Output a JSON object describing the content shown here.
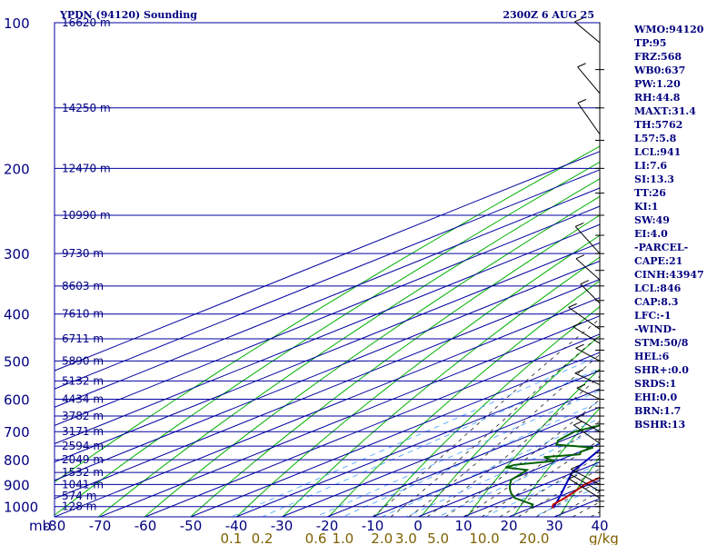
{
  "header": {
    "title": "YPDN (94120) Sounding",
    "datetime": "2300Z  6 AUG 25"
  },
  "indices": [
    "WMO:94120",
    "TP:95",
    "FRZ:568",
    "WB0:637",
    "PW:1.20",
    "RH:44.8",
    "MAXT:31.4",
    "TH:5762",
    "L57:5.8",
    "LCL:941",
    "LI:7.6",
    "SI:13.3",
    "TT:26",
    "KI:1",
    "SW:49",
    "EI:4.0",
    "-PARCEL-",
    "CAPE:21",
    "CINH:43947",
    "LCL:846",
    "CAP:8.3",
    "LFC:-1",
    "-WIND-",
    "STM:50/8",
    "HEL:6",
    "SHR+:0.0",
    "SRDS:1",
    "EHI:0.0",
    "BRN:1.7",
    "BSHR:13"
  ],
  "colors": {
    "frame": "#0000a0",
    "isotherm": "#0000a0",
    "dry_adiabat": "#00b000",
    "moist_adiabat": "#202020",
    "mixing_ratio": "#40a0ff",
    "temperature": "#c00000",
    "dewpoint": "#006000",
    "parcel": "#0000c0",
    "wind": "#000000"
  },
  "chart_data": {
    "type": "skew-t",
    "title": "YPDN (94120) Sounding",
    "pressure_unit_label": "mb",
    "mixing_ratio_unit_label": "g/kg",
    "pressure_ticks": [
      100,
      200,
      300,
      400,
      500,
      600,
      700,
      800,
      900,
      1000
    ],
    "temp_ticks": [
      -80,
      -70,
      -60,
      -50,
      -40,
      -30,
      -20,
      -10,
      0,
      10,
      20,
      30,
      40
    ],
    "temp_tick_labels": [
      "-80",
      "-70",
      "-60",
      "-50",
      "-40",
      "-30",
      "-20",
      "-10",
      "0",
      "10",
      "20",
      "30",
      "40"
    ],
    "mixing_ratio_ticks": [
      0.1,
      0.2,
      0.6,
      1.0,
      2.0,
      3.0,
      5.0,
      10.0,
      20.0
    ],
    "mixing_ratio_tick_labels": [
      "0.1",
      "0.2",
      "0.6",
      "1.0",
      "2.0",
      "3.0",
      "5.0",
      "10.0",
      "20.0"
    ],
    "height_levels": [
      {
        "p": 100,
        "label": "16620 m"
      },
      {
        "p": 150,
        "label": "14250 m"
      },
      {
        "p": 200,
        "label": "12470 m"
      },
      {
        "p": 250,
        "label": "10990 m"
      },
      {
        "p": 300,
        "label": "9730 m"
      },
      {
        "p": 350,
        "label": "8603 m"
      },
      {
        "p": 400,
        "label": "7610 m"
      },
      {
        "p": 450,
        "label": "6711 m"
      },
      {
        "p": 500,
        "label": "5890 m"
      },
      {
        "p": 550,
        "label": "5132 m"
      },
      {
        "p": 600,
        "label": "4434 m"
      },
      {
        "p": 650,
        "label": "3782 m"
      },
      {
        "p": 700,
        "label": "3171 m"
      },
      {
        "p": 750,
        "label": "2594 m"
      },
      {
        "p": 800,
        "label": "2049 m"
      },
      {
        "p": 850,
        "label": "1532 m"
      },
      {
        "p": 900,
        "label": "1041 m"
      },
      {
        "p": 950,
        "label": "574 m"
      },
      {
        "p": 1000,
        "label": "128 m"
      }
    ],
    "temperature_profile": [
      [
        1007,
        25.0
      ],
      [
        1000,
        24.0
      ],
      [
        990,
        23.0
      ],
      [
        960,
        22.0
      ],
      [
        930,
        20.6
      ],
      [
        900,
        19.0
      ],
      [
        870,
        18.5
      ],
      [
        850,
        17.6
      ],
      [
        820,
        16.4
      ],
      [
        800,
        15.6
      ],
      [
        780,
        14.6
      ],
      [
        760,
        12.8
      ],
      [
        740,
        11.2
      ],
      [
        720,
        10.6
      ],
      [
        700,
        9.4
      ],
      [
        680,
        8.0
      ],
      [
        660,
        7.0
      ],
      [
        640,
        6.0
      ],
      [
        620,
        4.5
      ],
      [
        600,
        2.0
      ],
      [
        570,
        0.2
      ],
      [
        550,
        -0.8
      ],
      [
        520,
        -2.2
      ],
      [
        500,
        -3.6
      ],
      [
        480,
        -4.8
      ],
      [
        450,
        -8.4
      ],
      [
        430,
        -10.4
      ],
      [
        400,
        -13.2
      ],
      [
        370,
        -15.4
      ],
      [
        340,
        -17.6
      ],
      [
        320,
        -20.5
      ],
      [
        300,
        -24.4
      ],
      [
        270,
        -30.0
      ],
      [
        250,
        -33.8
      ],
      [
        230,
        -38.4
      ],
      [
        200,
        -45.4
      ],
      [
        180,
        -51.0
      ],
      [
        160,
        -56.4
      ],
      [
        145,
        -61.0
      ],
      [
        125,
        -66.0
      ],
      [
        100,
        -76.0
      ]
    ],
    "dewpoint_profile": [
      [
        1007,
        20.0
      ],
      [
        990,
        18.5
      ],
      [
        960,
        11.0
      ],
      [
        940,
        7.8
      ],
      [
        920,
        5.0
      ],
      [
        900,
        2.5
      ],
      [
        880,
        0.2
      ],
      [
        860,
        -0.6
      ],
      [
        840,
        -1.7
      ],
      [
        830,
        -7.8
      ],
      [
        820,
        -7.2
      ],
      [
        805,
        -0.6
      ],
      [
        790,
        -5.0
      ],
      [
        780,
        1.4
      ],
      [
        770,
        0.2
      ],
      [
        755,
        0.6
      ],
      [
        745,
        -9.0
      ],
      [
        730,
        -11.0
      ],
      [
        700,
        -12.2
      ],
      [
        670,
        -9.0
      ],
      [
        650,
        -11.4
      ],
      [
        630,
        -8.6
      ],
      [
        620,
        -12.0
      ],
      [
        600,
        -12.0
      ],
      [
        580,
        -13.0
      ],
      [
        560,
        -16.0
      ],
      [
        540,
        -17.0
      ],
      [
        500,
        -20.2
      ],
      [
        480,
        -21.0
      ],
      [
        460,
        -27.4
      ],
      [
        440,
        -26.2
      ],
      [
        420,
        -27.4
      ],
      [
        400,
        -30.6
      ],
      [
        380,
        -35.4
      ],
      [
        360,
        -39.4
      ],
      [
        340,
        -42.0
      ],
      [
        310,
        -48.6
      ],
      [
        290,
        -52.0
      ],
      [
        250,
        -57.4
      ],
      [
        220,
        -61.0
      ],
      [
        200,
        -63.4
      ],
      [
        180,
        -63.0
      ],
      [
        160,
        -66.0
      ],
      [
        150,
        -71.0
      ],
      [
        137,
        -75.4
      ],
      [
        120,
        -79.0
      ]
    ],
    "parcel_profile": [
      [
        1007,
        25.0
      ],
      [
        950,
        19.8
      ],
      [
        900,
        14.8
      ],
      [
        846,
        9.2
      ],
      [
        800,
        6.0
      ],
      [
        750,
        2.2
      ],
      [
        700,
        -1.8
      ],
      [
        650,
        -6.4
      ],
      [
        600,
        -11.4
      ],
      [
        550,
        -17.2
      ],
      [
        500,
        -23.4
      ],
      [
        450,
        -30.6
      ],
      [
        400,
        -38.8
      ],
      [
        350,
        -48.4
      ],
      [
        300,
        -59.4
      ],
      [
        250,
        -72.0
      ],
      [
        220,
        -80.0
      ]
    ]
  }
}
